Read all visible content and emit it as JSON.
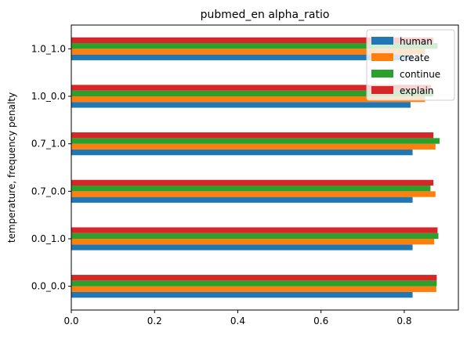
{
  "chart_data": {
    "type": "bar",
    "orientation": "horizontal",
    "title": "pubmed_en alpha_ratio",
    "xlabel": "",
    "ylabel": "temperature, frequency penalty",
    "categories": [
      "0.0_0.0",
      "0.0_1.0",
      "0.7_0.0",
      "0.7_1.0",
      "1.0_0.0",
      "1.0_1.0"
    ],
    "xlim": [
      0,
      0.93
    ],
    "xticks": [
      "0.0",
      "0.2",
      "0.4",
      "0.6",
      "0.8"
    ],
    "grid": false,
    "legend_position": "top-right",
    "series": [
      {
        "name": "human",
        "color": "#1f77b4",
        "values": [
          0.82,
          0.82,
          0.82,
          0.82,
          0.815,
          0.82
        ]
      },
      {
        "name": "create",
        "color": "#ff7f0e",
        "values": [
          0.877,
          0.872,
          0.875,
          0.875,
          0.85,
          0.85
        ]
      },
      {
        "name": "continue",
        "color": "#2ca02c",
        "values": [
          0.878,
          0.882,
          0.863,
          0.885,
          0.87,
          0.88
        ]
      },
      {
        "name": "explain",
        "color": "#d62728",
        "values": [
          0.878,
          0.88,
          0.87,
          0.87,
          0.865,
          0.87
        ]
      }
    ]
  }
}
